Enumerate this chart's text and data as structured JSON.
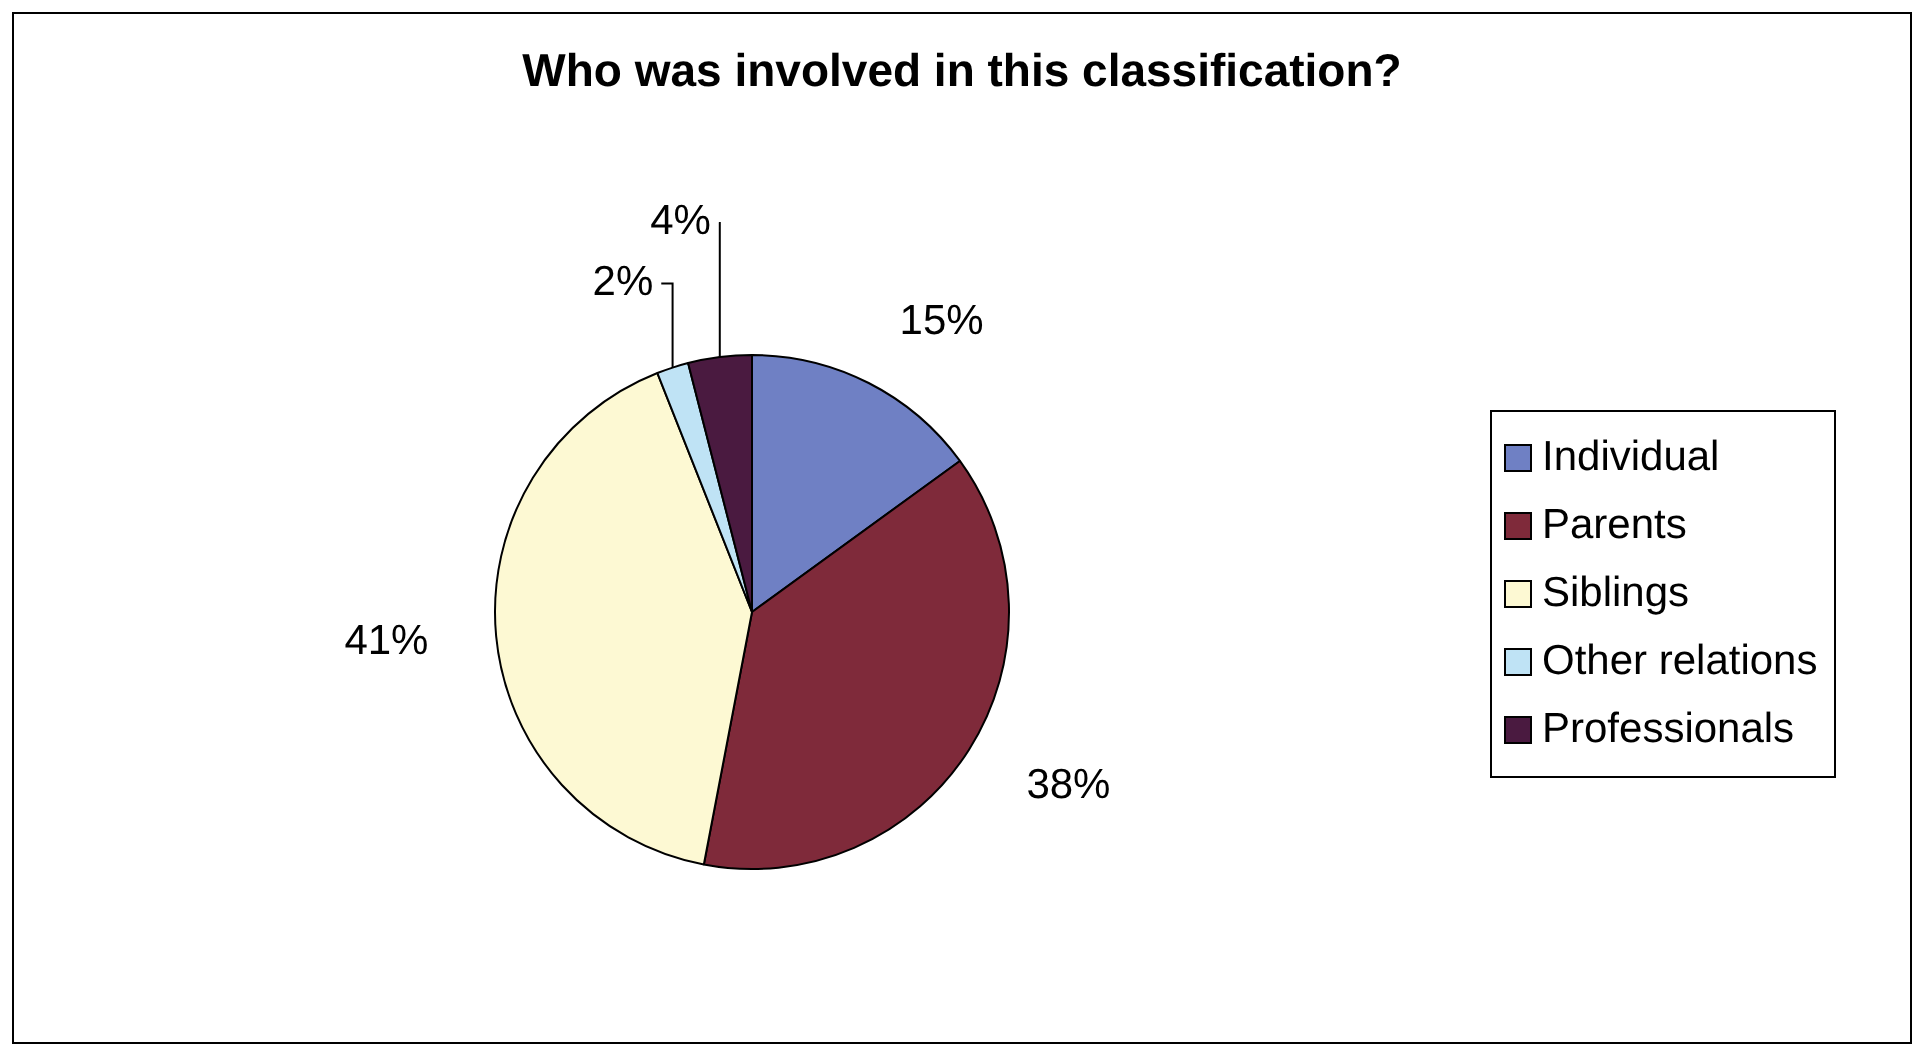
{
  "chart_data": {
    "type": "pie",
    "title": "Who was involved in this classification?",
    "categories": [
      "Individual",
      "Parents",
      "Siblings",
      "Other relations",
      "Professionals"
    ],
    "values": [
      15,
      38,
      41,
      2,
      4
    ],
    "colors": [
      "#6f80c4",
      "#7f2a3a",
      "#fdf9d3",
      "#bfe3f5",
      "#4a1a40"
    ],
    "value_labels": [
      "15%",
      "38%",
      "41%",
      "2%",
      "4%"
    ],
    "legend": "right"
  }
}
